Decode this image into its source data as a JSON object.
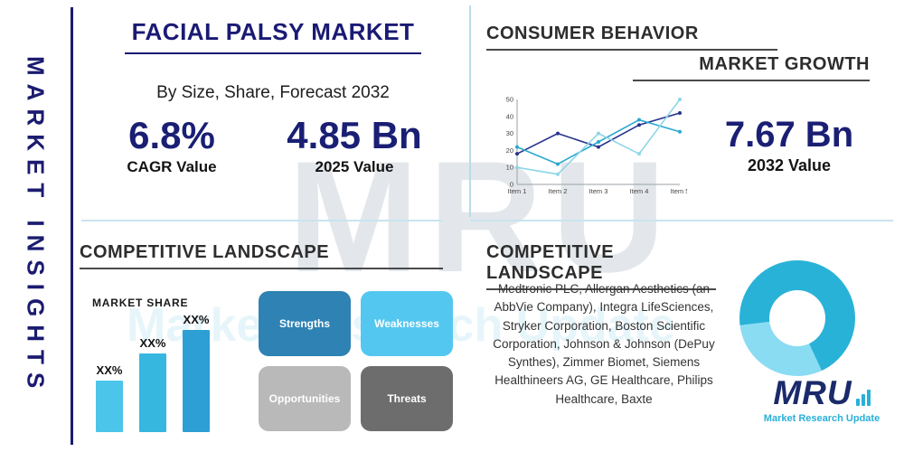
{
  "brand": {
    "sidebar_label": "MARKET INSIGHTS",
    "watermark": "MRU",
    "watermark_sub": "Market Research Update",
    "logo_text": "MRU",
    "logo_subtext": "Market Research Update"
  },
  "colors": {
    "navy": "#1b1f70",
    "heading_dark": "#2d2d2d",
    "accent_teal": "#29b0d8",
    "accent_light_blue": "#54c7f0",
    "divider_light": "#c9e4ef"
  },
  "top_left": {
    "title": "FACIAL PALSY MARKET",
    "subtitle": "By Size, Share, Forecast 2032",
    "stat1_value": "6.8%",
    "stat1_label": "CAGR Value",
    "stat2_value": "4.85 Bn",
    "stat2_label": "2025 Value"
  },
  "top_right": {
    "heading1": "CONSUMER BEHAVIOR",
    "heading2": "MARKET GROWTH",
    "stat_value": "7.67 Bn",
    "stat_label": "2032 Value"
  },
  "bottom_left": {
    "heading": "COMPETITIVE LANDSCAPE",
    "market_share_label": "MARKET SHARE",
    "swot": [
      {
        "label": "Strengths",
        "color": "#2e82b4"
      },
      {
        "label": "Weaknesses",
        "color": "#54c7f0"
      },
      {
        "label": "Opportunities",
        "color": "#b9b9b9"
      },
      {
        "label": "Threats",
        "color": "#6d6d6d"
      }
    ]
  },
  "bottom_right": {
    "heading": "COMPETITIVE LANDSCAPE",
    "companies": "Medtronic PLC, Allergan Aesthetics (an AbbVie Company), Integra LifeSciences, Stryker Corporation, Boston Scientific Corporation, Johnson & Johnson (DePuy Synthes), Zimmer Biomet, Siemens Healthineers AG, GE Healthcare, Philips Healthcare, Baxte"
  },
  "chart_data": [
    {
      "id": "growth-line",
      "type": "line",
      "title": "",
      "x": [
        "Item 1",
        "Item 2",
        "Item 3",
        "Item 4",
        "Item 5"
      ],
      "series": [
        {
          "name": "series-navy",
          "color": "#27348b",
          "values": [
            18,
            30,
            22,
            35,
            42
          ]
        },
        {
          "name": "series-teal",
          "color": "#2aa9cf",
          "values": [
            22,
            12,
            25,
            38,
            31
          ]
        },
        {
          "name": "series-light",
          "color": "#8ed6e8",
          "values": [
            10,
            6,
            30,
            18,
            50
          ]
        }
      ],
      "ylim": [
        0,
        50
      ],
      "yticks": [
        0,
        10,
        20,
        30,
        40,
        50
      ],
      "grid": false,
      "legend": "none"
    },
    {
      "id": "market-share-bars",
      "type": "bar",
      "title": "MARKET SHARE",
      "categories": [
        "",
        "",
        ""
      ],
      "values": [
        31,
        47,
        61
      ],
      "labels": [
        "XX%",
        "XX%",
        "XX%"
      ],
      "colors": [
        "#4cc5ea",
        "#36b7e0",
        "#2d9fd4"
      ],
      "ylabel": "",
      "xlabel": ""
    },
    {
      "id": "share-donut",
      "type": "pie",
      "donut": true,
      "start_angle": 155,
      "slices": [
        {
          "label": "light-segment",
          "value": 30,
          "color": "#8adcf2"
        },
        {
          "label": "dark-segment",
          "value": 70,
          "color": "#29b2d8"
        }
      ]
    }
  ]
}
